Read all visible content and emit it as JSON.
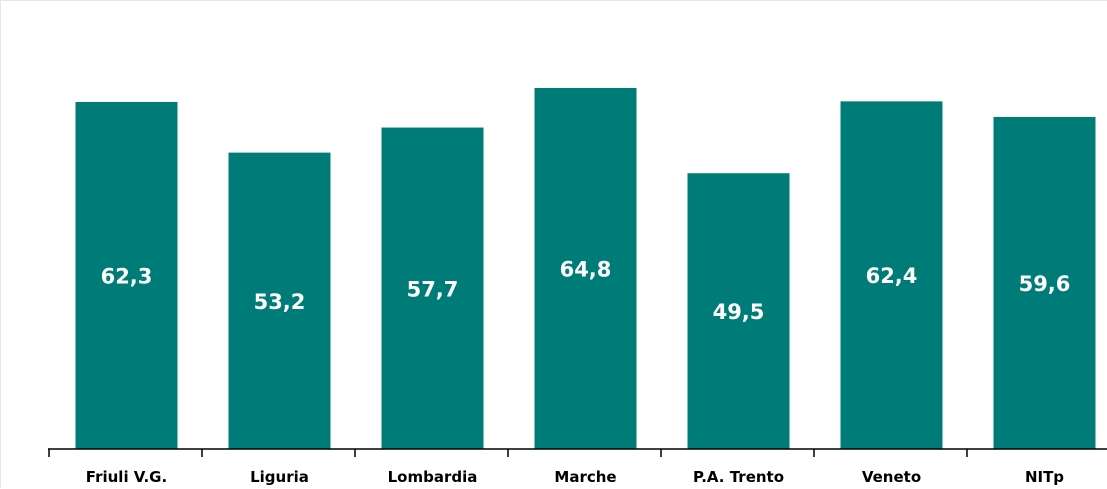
{
  "chart_data": {
    "type": "bar",
    "categories": [
      "Friuli V.G.",
      "Liguria",
      "Lombardia",
      "Marche",
      "P.A. Trento",
      "Veneto",
      "NITp"
    ],
    "values": [
      62.3,
      53.2,
      57.7,
      64.8,
      49.5,
      62.4,
      59.6
    ],
    "value_labels": [
      "62,3",
      "53,2",
      "57,7",
      "64,8",
      "49,5",
      "62,4",
      "59,6"
    ],
    "title": "",
    "xlabel": "",
    "ylabel": "",
    "ylim": [
      0,
      70
    ],
    "grid": false,
    "legend": "none",
    "bar_color": "#007c78"
  }
}
